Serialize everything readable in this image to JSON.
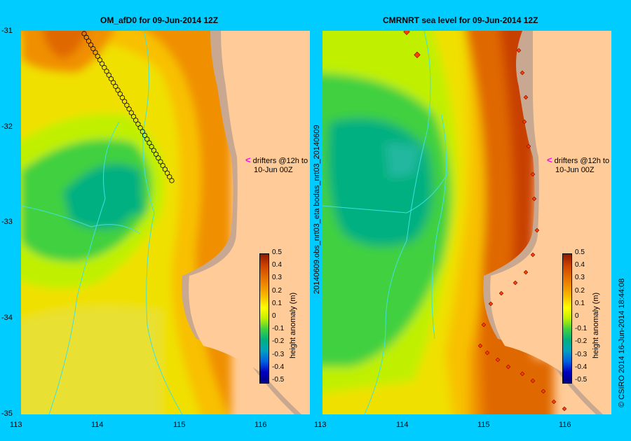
{
  "left_title": "OM_afD0 for 09-Jun-2014 12Z",
  "right_title": "CMRNRT sea level  for 09-Jun-2014 12Z",
  "y_ticks": [
    "-31",
    "-32",
    "-33",
    "-34",
    "-35"
  ],
  "x_ticks": [
    "113",
    "114",
    "115",
    "116"
  ],
  "right_x_ticks": [
    "113",
    "114",
    "115",
    "116"
  ],
  "center_label": "20140609.obs_nrt03_eta  bodas_nrt03_20140609",
  "credit": "© CSIRO 2014   16-Jun-2014 18:44:08",
  "drifters_line1": "drifters @12h to",
  "drifters_line2": "10-Jun 00Z",
  "colorbar": {
    "title": "height anomaly (m)",
    "ticks": [
      "0.5",
      "0.4",
      "0.3",
      "0.2",
      "0.1",
      "0",
      "-0.1",
      "-0.2",
      "-0.3",
      "-0.4",
      "-0.5"
    ],
    "colors": [
      "#8b1a00",
      "#c84000",
      "#e06800",
      "#f09000",
      "#f8c000",
      "#ffff00",
      "#c0f000",
      "#40d040",
      "#00b080",
      "#00a0c0",
      "#0060e0",
      "#0000c0",
      "#000080"
    ]
  },
  "colors": {
    "land": "#ffcc99",
    "shelf": "#c8a890",
    "background": "#00ccff"
  }
}
